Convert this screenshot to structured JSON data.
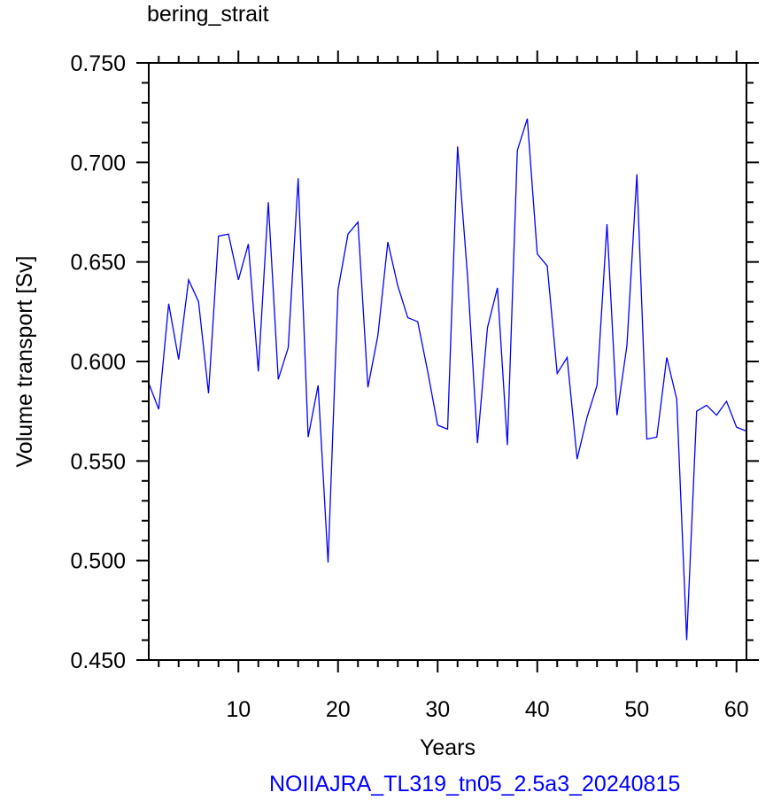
{
  "title": "bering_strait",
  "footer": "NOIIAJRA_TL319_tn05_2.5a3_20240815",
  "colors": {
    "line": "#0000ff",
    "footer": "#0000ff",
    "axes": "#000000"
  },
  "chart_data": {
    "type": "line",
    "title": "bering_strait",
    "xlabel": "Years",
    "ylabel": "Volume transport [Sv]",
    "xlim": [
      1,
      61
    ],
    "ylim": [
      0.45,
      0.75
    ],
    "xticks": [
      10,
      20,
      30,
      40,
      50,
      60
    ],
    "xtick_labels": [
      "10",
      "20",
      "30",
      "40",
      "50",
      "60"
    ],
    "yticks": [
      0.45,
      0.5,
      0.55,
      0.6,
      0.65,
      0.7,
      0.75
    ],
    "ytick_labels": [
      "0.450",
      "0.500",
      "0.550",
      "0.600",
      "0.650",
      "0.700",
      "0.750"
    ],
    "grid": false,
    "series": [
      {
        "color": "#0000ff",
        "x": [
          1,
          2,
          3,
          4,
          5,
          6,
          7,
          8,
          9,
          10,
          11,
          12,
          13,
          14,
          15,
          16,
          17,
          18,
          19,
          20,
          21,
          22,
          23,
          24,
          25,
          26,
          27,
          28,
          29,
          30,
          31,
          32,
          33,
          34,
          35,
          36,
          37,
          38,
          39,
          40,
          41,
          42,
          43,
          44,
          45,
          46,
          47,
          48,
          49,
          50,
          51,
          52,
          53,
          54,
          55,
          56,
          57,
          58,
          59,
          60,
          61
        ],
        "values": [
          0.589,
          0.576,
          0.629,
          0.601,
          0.641,
          0.63,
          0.584,
          0.663,
          0.664,
          0.641,
          0.659,
          0.595,
          0.68,
          0.591,
          0.607,
          0.692,
          0.562,
          0.588,
          0.499,
          0.636,
          0.664,
          0.67,
          0.587,
          0.613,
          0.66,
          0.638,
          0.622,
          0.62,
          0.595,
          0.568,
          0.566,
          0.708,
          0.643,
          0.559,
          0.617,
          0.637,
          0.558,
          0.706,
          0.722,
          0.654,
          0.648,
          0.594,
          0.602,
          0.551,
          0.572,
          0.588,
          0.669,
          0.573,
          0.608,
          0.694,
          0.561,
          0.562,
          0.602,
          0.581,
          0.46,
          0.575,
          0.578,
          0.573,
          0.58,
          0.567,
          0.565
        ]
      }
    ]
  }
}
